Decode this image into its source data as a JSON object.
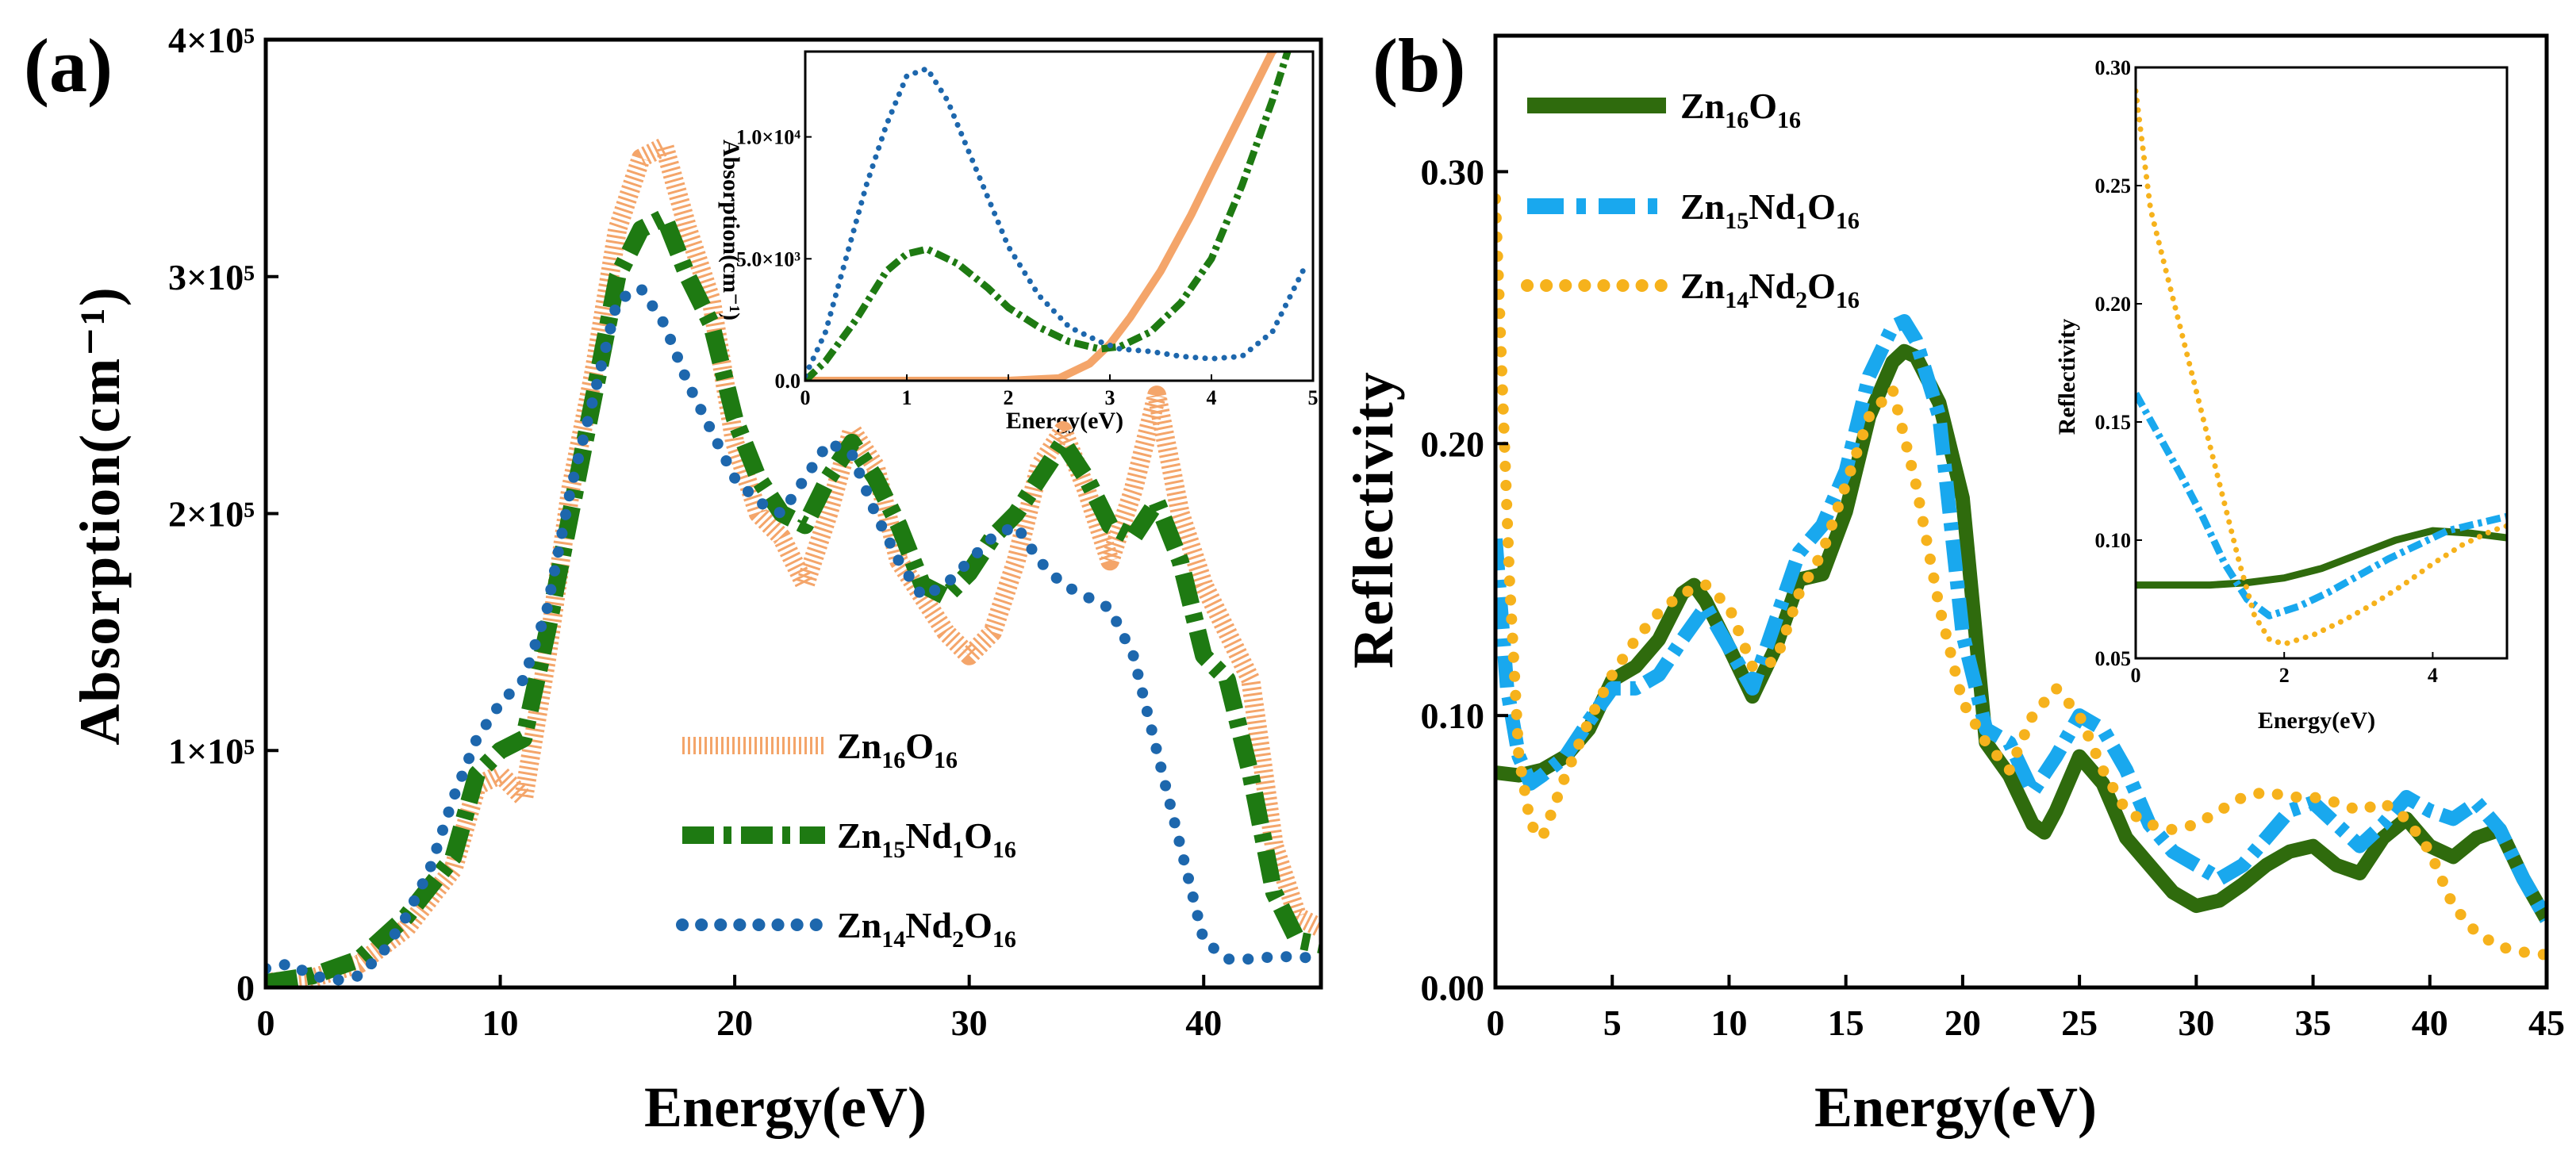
{
  "panels": {
    "a": {
      "label": "(a)"
    },
    "b": {
      "label": "(b)"
    }
  },
  "colors": {
    "Zn16O16_a": "#f4a56a",
    "Zn15Nd1O16_a": "#1e7a12",
    "Zn14Nd2O16_a": "#1d67ad",
    "Zn16O16_b": "#2f6b0d",
    "Zn15Nd1O16_b": "#19a8ee",
    "Zn14Nd2O16_b": "#f6b21c"
  },
  "chart_data": [
    {
      "id": "a-main",
      "type": "line",
      "title": "",
      "xlabel": "Energy(eV)",
      "ylabel": "Absorption(cm⁻¹)",
      "xlim": [
        0,
        45
      ],
      "ylim": [
        0,
        400000
      ],
      "xticks": [
        0,
        10,
        20,
        30,
        40
      ],
      "xtick_labels": [
        "0",
        "10",
        "20",
        "30",
        "40"
      ],
      "yticks": [
        0,
        100000,
        200000,
        300000,
        400000
      ],
      "ytick_labels": [
        "0",
        "1×10⁵",
        "2×10⁵",
        "3×10⁵",
        "4×10⁵"
      ],
      "legend": [
        "Zn₁₆O₁₆",
        "Zn₁₅Nd₁O₁₆",
        "Zn₁₄Nd₂O₁₆"
      ],
      "legend_position": "bottom-right",
      "series": [
        {
          "name": "Zn16O16",
          "style": "solid-hatched",
          "x": [
            0,
            2,
            4,
            6,
            8,
            9,
            10,
            11,
            12,
            13,
            14,
            15,
            16,
            17,
            18,
            19,
            20,
            21,
            22,
            23,
            24,
            25,
            26,
            27,
            28,
            29,
            30,
            31,
            32,
            33,
            34,
            35,
            36,
            37,
            38,
            39,
            40,
            41,
            42,
            43,
            44,
            45
          ],
          "y": [
            2000,
            4000,
            10000,
            25000,
            50000,
            85000,
            90000,
            80000,
            140000,
            210000,
            260000,
            320000,
            350000,
            355000,
            320000,
            290000,
            230000,
            200000,
            190000,
            170000,
            200000,
            235000,
            220000,
            180000,
            165000,
            150000,
            140000,
            150000,
            180000,
            220000,
            235000,
            210000,
            180000,
            210000,
            250000,
            200000,
            170000,
            150000,
            130000,
            60000,
            30000,
            25000
          ]
        },
        {
          "name": "Zn15Nd1O16",
          "style": "dash-dot",
          "x": [
            0,
            2,
            4,
            6,
            8,
            9,
            10,
            11,
            12,
            13,
            14,
            15,
            16,
            17,
            18,
            19,
            20,
            21,
            22,
            23,
            24,
            25,
            26,
            27,
            28,
            29,
            30,
            31,
            32,
            33,
            34,
            35,
            36,
            37,
            38,
            39,
            40,
            41,
            42,
            43,
            44,
            45
          ],
          "y": [
            2000,
            5000,
            12000,
            30000,
            55000,
            90000,
            100000,
            105000,
            150000,
            200000,
            250000,
            300000,
            320000,
            325000,
            300000,
            280000,
            240000,
            215000,
            200000,
            195000,
            215000,
            230000,
            215000,
            195000,
            170000,
            165000,
            175000,
            190000,
            200000,
            215000,
            230000,
            215000,
            195000,
            190000,
            205000,
            180000,
            140000,
            130000,
            90000,
            40000,
            20000,
            18000
          ]
        },
        {
          "name": "Zn14Nd2O16",
          "style": "dotted",
          "x": [
            0,
            1,
            2,
            3,
            4,
            5,
            6,
            7,
            8,
            9,
            10,
            11,
            12,
            13,
            14,
            15,
            16,
            17,
            18,
            19,
            20,
            21,
            22,
            23,
            24,
            25,
            26,
            27,
            28,
            29,
            30,
            31,
            32,
            33,
            34,
            35,
            36,
            37,
            38,
            39,
            40,
            41,
            42,
            43,
            44,
            45
          ],
          "y": [
            8000,
            10000,
            5000,
            3000,
            5000,
            15000,
            30000,
            50000,
            80000,
            105000,
            120000,
            130000,
            160000,
            210000,
            250000,
            290000,
            295000,
            280000,
            255000,
            235000,
            215000,
            205000,
            200000,
            215000,
            230000,
            225000,
            200000,
            180000,
            165000,
            170000,
            180000,
            190000,
            195000,
            180000,
            170000,
            165000,
            160000,
            140000,
            100000,
            60000,
            20000,
            12000,
            12000,
            13000,
            13000,
            12000
          ]
        }
      ]
    },
    {
      "id": "a-inset",
      "type": "line",
      "xlabel": "Energy(eV)",
      "ylabel": "Absorption(cm⁻¹)",
      "xlim": [
        0,
        5
      ],
      "ylim": [
        0,
        13500
      ],
      "xticks": [
        0,
        1,
        2,
        3,
        4,
        5
      ],
      "xtick_labels": [
        "0",
        "1",
        "2",
        "3",
        "4",
        "5"
      ],
      "yticks": [
        0,
        5000,
        10000
      ],
      "ytick_labels": [
        "0.0",
        "5.0×10³",
        "1.0×10⁴"
      ],
      "series": [
        {
          "name": "Zn16O16",
          "style": "solid",
          "x": [
            0,
            0.5,
            1,
            1.5,
            2,
            2.5,
            2.8,
            3,
            3.2,
            3.5,
            3.8,
            4,
            4.3,
            4.6,
            5
          ],
          "y": [
            0,
            0,
            0,
            0,
            0,
            100,
            700,
            1500,
            2600,
            4500,
            6800,
            8500,
            11000,
            13500,
            15000
          ]
        },
        {
          "name": "Zn15Nd1O16",
          "style": "dash-dot",
          "x": [
            0,
            0.2,
            0.5,
            0.8,
            1.0,
            1.2,
            1.5,
            1.8,
            2.0,
            2.3,
            2.6,
            2.9,
            3.1,
            3.4,
            3.7,
            4.0,
            4.3,
            4.6,
            4.75
          ],
          "y": [
            0,
            800,
            2500,
            4500,
            5200,
            5400,
            4800,
            3800,
            3000,
            2200,
            1600,
            1300,
            1400,
            2000,
            3200,
            5000,
            8000,
            11500,
            13500
          ]
        },
        {
          "name": "Zn14Nd2O16",
          "style": "dotted",
          "x": [
            0,
            0.2,
            0.4,
            0.6,
            0.8,
            1.0,
            1.2,
            1.4,
            1.6,
            1.8,
            2.0,
            2.3,
            2.6,
            2.9,
            3.1,
            3.4,
            3.7,
            4.0,
            4.3,
            4.6,
            4.9
          ],
          "y": [
            200,
            2000,
            5000,
            8000,
            10500,
            12500,
            12800,
            11500,
            9500,
            7500,
            5500,
            3500,
            2200,
            1600,
            1300,
            1200,
            1000,
            900,
            1000,
            2000,
            4500
          ]
        }
      ]
    },
    {
      "id": "b-main",
      "type": "line",
      "title": "",
      "xlabel": "Energy(eV)",
      "ylabel": "Reflectivity",
      "xlim": [
        0,
        45
      ],
      "ylim": [
        0,
        0.35
      ],
      "xticks": [
        0,
        5,
        10,
        15,
        20,
        25,
        30,
        35,
        40,
        45
      ],
      "xtick_labels": [
        "0",
        "5",
        "10",
        "15",
        "20",
        "25",
        "30",
        "35",
        "40",
        "45"
      ],
      "yticks": [
        0,
        0.1,
        0.2,
        0.3
      ],
      "ytick_labels": [
        "0.00",
        "0.10",
        "0.20",
        "0.30"
      ],
      "legend": [
        "Zn₁₆O₁₆",
        "Zn₁₅Nd₁O₁₆",
        "Zn₁₄Nd₂O₁₆"
      ],
      "legend_position": "top-left",
      "series": [
        {
          "name": "Zn16O16",
          "style": "solid",
          "x": [
            0,
            1,
            2,
            3,
            4,
            5,
            6,
            7,
            8,
            8.5,
            9,
            10,
            11,
            12,
            13,
            14,
            15,
            16,
            17,
            17.5,
            18,
            19,
            20,
            21,
            22,
            23,
            23.5,
            24,
            25,
            26,
            27,
            28,
            29,
            30,
            31,
            32,
            33,
            34,
            35,
            36,
            37,
            38,
            39,
            40,
            41,
            42,
            43,
            44,
            45
          ],
          "y": [
            0.079,
            0.078,
            0.08,
            0.085,
            0.095,
            0.113,
            0.118,
            0.128,
            0.145,
            0.148,
            0.142,
            0.125,
            0.107,
            0.125,
            0.15,
            0.152,
            0.175,
            0.21,
            0.23,
            0.234,
            0.232,
            0.215,
            0.18,
            0.09,
            0.078,
            0.06,
            0.057,
            0.065,
            0.085,
            0.075,
            0.055,
            0.045,
            0.035,
            0.03,
            0.032,
            0.038,
            0.045,
            0.05,
            0.052,
            0.045,
            0.042,
            0.055,
            0.062,
            0.052,
            0.048,
            0.055,
            0.058,
            0.04,
            0.025
          ]
        },
        {
          "name": "Zn15Nd1O16",
          "style": "dash-dot",
          "x": [
            0,
            0.5,
            1,
            1.5,
            2,
            3,
            4,
            5,
            6,
            7,
            8,
            9,
            10,
            11,
            12,
            13,
            14,
            15,
            16,
            17,
            17.5,
            18,
            19,
            20,
            21,
            22,
            23,
            24,
            25,
            26,
            27,
            28,
            29,
            30,
            31,
            32,
            33,
            34,
            35,
            36,
            37,
            38,
            39,
            40,
            41,
            42,
            43,
            44,
            45
          ],
          "y": [
            0.165,
            0.11,
            0.085,
            0.075,
            0.078,
            0.085,
            0.098,
            0.11,
            0.11,
            0.115,
            0.128,
            0.14,
            0.125,
            0.11,
            0.135,
            0.16,
            0.17,
            0.19,
            0.225,
            0.243,
            0.245,
            0.238,
            0.21,
            0.13,
            0.095,
            0.09,
            0.072,
            0.085,
            0.1,
            0.095,
            0.08,
            0.06,
            0.05,
            0.045,
            0.04,
            0.045,
            0.055,
            0.065,
            0.068,
            0.06,
            0.052,
            0.06,
            0.07,
            0.065,
            0.062,
            0.068,
            0.058,
            0.04,
            0.025
          ]
        },
        {
          "name": "Zn14Nd2O16",
          "style": "dotted",
          "x": [
            0,
            0.3,
            0.6,
            1,
            1.5,
            2,
            3,
            4,
            5,
            6,
            7,
            8,
            9,
            10,
            11,
            12,
            13,
            14,
            15,
            16,
            17,
            18,
            19,
            20,
            21,
            22,
            23,
            24,
            25,
            26,
            27,
            28,
            29,
            30,
            31,
            32,
            33,
            34,
            35,
            36,
            37,
            38,
            39,
            40,
            41,
            42,
            43,
            44,
            45
          ],
          "y": [
            0.29,
            0.22,
            0.15,
            0.085,
            0.06,
            0.055,
            0.078,
            0.098,
            0.115,
            0.128,
            0.138,
            0.145,
            0.148,
            0.14,
            0.118,
            0.12,
            0.145,
            0.16,
            0.185,
            0.21,
            0.22,
            0.185,
            0.14,
            0.105,
            0.09,
            0.08,
            0.1,
            0.11,
            0.1,
            0.08,
            0.065,
            0.06,
            0.058,
            0.06,
            0.065,
            0.07,
            0.072,
            0.07,
            0.07,
            0.068,
            0.065,
            0.068,
            0.062,
            0.05,
            0.03,
            0.02,
            0.015,
            0.013,
            0.012
          ]
        }
      ]
    },
    {
      "id": "b-inset",
      "type": "line",
      "xlabel": "Energy(eV)",
      "ylabel": "Reflectivity",
      "xlim": [
        0,
        5
      ],
      "ylim": [
        0.05,
        0.3
      ],
      "xticks": [
        0,
        2,
        4
      ],
      "xtick_labels": [
        "0",
        "2",
        "4"
      ],
      "yticks": [
        0.05,
        0.1,
        0.15,
        0.2,
        0.25,
        0.3
      ],
      "ytick_labels": [
        "0.05",
        "0.10",
        "0.15",
        "0.20",
        "0.25",
        "0.30"
      ],
      "series": [
        {
          "name": "Zn16O16",
          "style": "solid",
          "x": [
            0,
            0.5,
            1,
            1.5,
            2,
            2.5,
            3,
            3.5,
            4,
            4.5,
            5
          ],
          "y": [
            0.081,
            0.081,
            0.081,
            0.082,
            0.084,
            0.088,
            0.094,
            0.1,
            0.104,
            0.103,
            0.101
          ]
        },
        {
          "name": "Zn15Nd1O16",
          "style": "dash-dot",
          "x": [
            0,
            0.3,
            0.6,
            0.9,
            1.2,
            1.5,
            1.8,
            2.2,
            2.6,
            3.0,
            3.4,
            3.8,
            4.2,
            4.6,
            5
          ],
          "y": [
            0.162,
            0.145,
            0.128,
            0.11,
            0.09,
            0.075,
            0.068,
            0.072,
            0.078,
            0.085,
            0.092,
            0.098,
            0.104,
            0.107,
            0.11
          ]
        },
        {
          "name": "Zn14Nd2O16",
          "style": "dotted",
          "x": [
            0,
            0.2,
            0.4,
            0.6,
            0.8,
            1.0,
            1.2,
            1.4,
            1.6,
            1.8,
            2.0,
            2.4,
            2.8,
            3.2,
            3.6,
            4.0,
            4.4,
            4.8,
            5
          ],
          "y": [
            0.29,
            0.24,
            0.215,
            0.19,
            0.165,
            0.14,
            0.115,
            0.09,
            0.068,
            0.058,
            0.056,
            0.06,
            0.066,
            0.073,
            0.081,
            0.09,
            0.098,
            0.104,
            0.106
          ]
        }
      ]
    }
  ]
}
